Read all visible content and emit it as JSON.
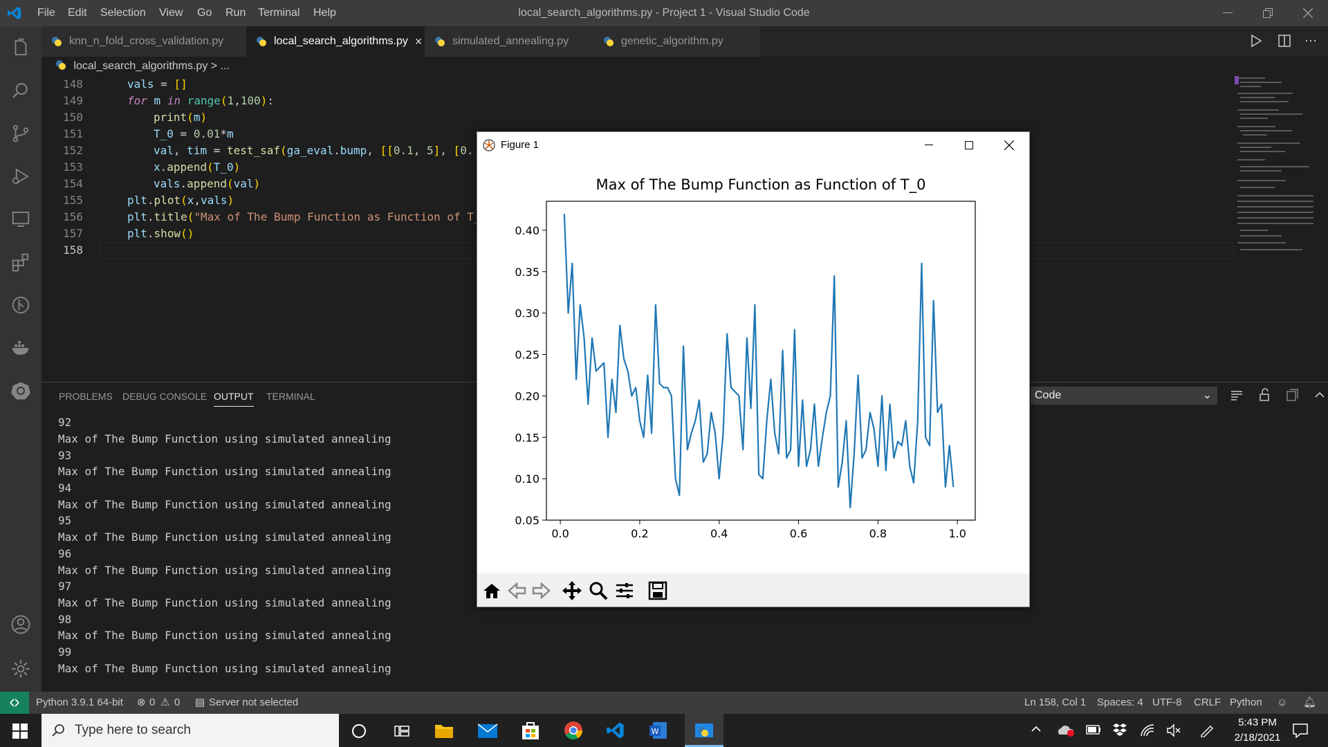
{
  "window": {
    "title": "local_search_algorithms.py - Project 1 - Visual Studio Code",
    "menu": [
      "File",
      "Edit",
      "Selection",
      "View",
      "Go",
      "Run",
      "Terminal",
      "Help"
    ]
  },
  "tabs": [
    {
      "label": "knn_n_fold_cross_validation.py",
      "active": false
    },
    {
      "label": "local_search_algorithms.py",
      "active": true
    },
    {
      "label": "simulated_annealing.py",
      "active": false
    },
    {
      "label": "genetic_algorithm.py",
      "active": false
    }
  ],
  "breadcrumb": {
    "file": "local_search_algorithms.py",
    "sep": ">",
    "rest": "..."
  },
  "editor": {
    "line_numbers": [
      "148",
      "149",
      "150",
      "151",
      "152",
      "153",
      "154",
      "155",
      "156",
      "157",
      "158"
    ]
  },
  "panel": {
    "tabs": [
      "PROBLEMS",
      "DEBUG CONSOLE",
      "OUTPUT",
      "TERMINAL"
    ],
    "dropdown": "Code",
    "output_lines": [
      "92",
      "Max of The Bump Function using simulated annealing",
      "93",
      "Max of The Bump Function using simulated annealing",
      "94",
      "Max of The Bump Function using simulated annealing",
      "95",
      "Max of The Bump Function using simulated annealing",
      "96",
      "Max of The Bump Function using simulated annealing",
      "97",
      "Max of The Bump Function using simulated annealing",
      "98",
      "Max of The Bump Function using simulated annealing",
      "99",
      "Max of The Bump Function using simulated annealing"
    ]
  },
  "status": {
    "python": "Python 3.9.1 64-bit",
    "errors": "0",
    "warnings": "0",
    "server": "Server not selected",
    "position": "Ln 158, Col 1",
    "spaces": "Spaces: 4",
    "encoding": "UTF-8",
    "eol": "CRLF",
    "language": "Python"
  },
  "taskbar": {
    "search_placeholder": "Type here to search",
    "time": "5:43 PM",
    "date": "2/18/2021"
  },
  "figure": {
    "window_title": "Figure 1"
  },
  "chart_data": {
    "type": "line",
    "title": "Max of The Bump Function as Function of T_0",
    "xlabel": "",
    "ylabel": "",
    "xlim": [
      -0.035,
      1.045
    ],
    "ylim": [
      0.05,
      0.435
    ],
    "xticks": [
      "0.0",
      "0.2",
      "0.4",
      "0.6",
      "0.8",
      "1.0"
    ],
    "yticks": [
      "0.05",
      "0.10",
      "0.15",
      "0.20",
      "0.25",
      "0.30",
      "0.35",
      "0.40"
    ],
    "grid": false,
    "x_start": 0.01,
    "x_step": 0.01,
    "values": [
      0.42,
      0.3,
      0.36,
      0.22,
      0.31,
      0.27,
      0.19,
      0.27,
      0.23,
      0.235,
      0.24,
      0.15,
      0.22,
      0.18,
      0.285,
      0.245,
      0.23,
      0.2,
      0.21,
      0.17,
      0.15,
      0.225,
      0.155,
      0.31,
      0.215,
      0.21,
      0.21,
      0.2,
      0.1,
      0.08,
      0.26,
      0.135,
      0.155,
      0.17,
      0.195,
      0.12,
      0.13,
      0.18,
      0.155,
      0.1,
      0.155,
      0.275,
      0.21,
      0.205,
      0.2,
      0.135,
      0.27,
      0.185,
      0.31,
      0.105,
      0.1,
      0.17,
      0.22,
      0.155,
      0.13,
      0.255,
      0.125,
      0.135,
      0.28,
      0.115,
      0.195,
      0.115,
      0.135,
      0.19,
      0.115,
      0.15,
      0.18,
      0.2,
      0.345,
      0.09,
      0.12,
      0.17,
      0.065,
      0.13,
      0.225,
      0.125,
      0.135,
      0.18,
      0.16,
      0.115,
      0.2,
      0.11,
      0.19,
      0.125,
      0.145,
      0.14,
      0.17,
      0.115,
      0.095,
      0.17,
      0.36,
      0.15,
      0.14,
      0.315,
      0.18,
      0.19,
      0.09,
      0.14,
      0.09
    ]
  }
}
